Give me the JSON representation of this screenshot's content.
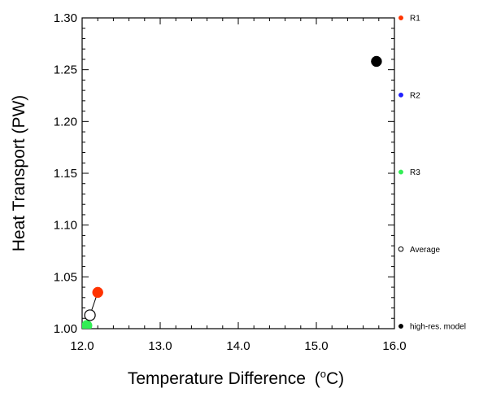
{
  "chart_data": {
    "type": "scatter",
    "title": "",
    "xlabel": "Temperature Difference",
    "xlabel_unit": "(oC)",
    "xlabel_unit_parts": {
      "open": "(",
      "sup": "o",
      "main": "C)"
    },
    "ylabel": "Heat Transport (PW)",
    "xlim": [
      12.0,
      16.0
    ],
    "ylim": [
      1.0,
      1.3
    ],
    "x_ticks": [
      12.0,
      13.0,
      14.0,
      15.0,
      16.0
    ],
    "x_tick_labels": [
      "12.0",
      "13.0",
      "14.0",
      "15.0",
      "16.0"
    ],
    "y_ticks": [
      1.0,
      1.05,
      1.1,
      1.15,
      1.2,
      1.25,
      1.3
    ],
    "y_tick_labels": [
      "1.00",
      "1.05",
      "1.10",
      "1.15",
      "1.20",
      "1.25",
      "1.30"
    ],
    "grid": false,
    "legend_placement": "right, outside plot area",
    "series": [
      {
        "name": "R1",
        "color": "#ff3300",
        "marker": "filled-circle",
        "x": 12.2,
        "y": 1.035
      },
      {
        "name": "R2",
        "color": "#2020ff",
        "marker": "filled-circle",
        "x": null,
        "y": null
      },
      {
        "name": "R3",
        "color": "#33ee55",
        "marker": "filled-circle",
        "x": 12.06,
        "y": 1.003
      },
      {
        "name": "Average",
        "color": "#000000",
        "marker": "open-circle",
        "x": 12.1,
        "y": 1.013
      },
      {
        "name": "high-res. model",
        "color": "#000000",
        "marker": "filled-circle",
        "x": 15.77,
        "y": 1.258
      }
    ],
    "connector": {
      "from": "Average",
      "to": "R1"
    }
  }
}
